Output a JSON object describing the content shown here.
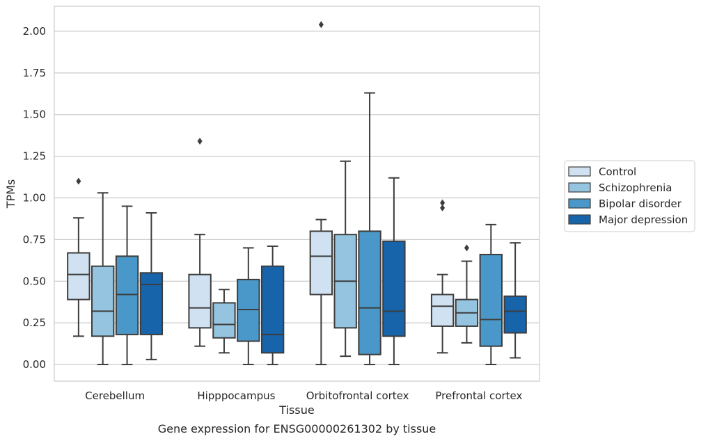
{
  "caption": "Gene expression for ENSG00000261302 by tissue",
  "chart_data": {
    "type": "box",
    "xlabel": "Tissue",
    "ylabel": "TPMs",
    "ylim": [
      -0.1,
      2.15
    ],
    "yticks": [
      "0.00",
      "0.25",
      "0.50",
      "0.75",
      "1.00",
      "1.25",
      "1.50",
      "1.75",
      "2.00"
    ],
    "grid": true,
    "legend_position": "right",
    "categories": [
      "Cerebellum",
      "Hipppocampus",
      "Orbitofrontal cortex",
      "Prefrontal cortex"
    ],
    "series": [
      {
        "name": "Control",
        "color": "#d0e1f2",
        "boxes": [
          {
            "whisker_low": 0.17,
            "q1": 0.39,
            "median": 0.54,
            "q3": 0.67,
            "whisker_high": 0.88,
            "outliers": [
              1.1
            ]
          },
          {
            "whisker_low": 0.11,
            "q1": 0.22,
            "median": 0.34,
            "q3": 0.54,
            "whisker_high": 0.78,
            "outliers": [
              1.34
            ]
          },
          {
            "whisker_low": 0.0,
            "q1": 0.42,
            "median": 0.65,
            "q3": 0.8,
            "whisker_high": 0.87,
            "outliers": [
              2.04
            ]
          },
          {
            "whisker_low": 0.07,
            "q1": 0.23,
            "median": 0.35,
            "q3": 0.42,
            "whisker_high": 0.54,
            "outliers": [
              0.94,
              0.97
            ]
          }
        ]
      },
      {
        "name": "Schizophrenia",
        "color": "#94c4df",
        "boxes": [
          {
            "whisker_low": 0.0,
            "q1": 0.17,
            "median": 0.32,
            "q3": 0.59,
            "whisker_high": 1.03,
            "outliers": []
          },
          {
            "whisker_low": 0.07,
            "q1": 0.16,
            "median": 0.24,
            "q3": 0.37,
            "whisker_high": 0.45,
            "outliers": []
          },
          {
            "whisker_low": 0.05,
            "q1": 0.22,
            "median": 0.5,
            "q3": 0.78,
            "whisker_high": 1.22,
            "outliers": []
          },
          {
            "whisker_low": 0.13,
            "q1": 0.23,
            "median": 0.31,
            "q3": 0.39,
            "whisker_high": 0.62,
            "outliers": [
              0.7
            ]
          }
        ]
      },
      {
        "name": "Bipolar disorder",
        "color": "#4a98c9",
        "boxes": [
          {
            "whisker_low": 0.0,
            "q1": 0.18,
            "median": 0.42,
            "q3": 0.65,
            "whisker_high": 0.95,
            "outliers": []
          },
          {
            "whisker_low": 0.0,
            "q1": 0.14,
            "median": 0.33,
            "q3": 0.51,
            "whisker_high": 0.7,
            "outliers": []
          },
          {
            "whisker_low": 0.0,
            "q1": 0.06,
            "median": 0.34,
            "q3": 0.8,
            "whisker_high": 1.63,
            "outliers": []
          },
          {
            "whisker_low": 0.0,
            "q1": 0.11,
            "median": 0.27,
            "q3": 0.66,
            "whisker_high": 0.84,
            "outliers": []
          }
        ]
      },
      {
        "name": "Major depression",
        "color": "#1764ab",
        "boxes": [
          {
            "whisker_low": 0.03,
            "q1": 0.18,
            "median": 0.48,
            "q3": 0.55,
            "whisker_high": 0.91,
            "outliers": []
          },
          {
            "whisker_low": 0.0,
            "q1": 0.07,
            "median": 0.18,
            "q3": 0.59,
            "whisker_high": 0.71,
            "outliers": []
          },
          {
            "whisker_low": 0.0,
            "q1": 0.17,
            "median": 0.32,
            "q3": 0.74,
            "whisker_high": 1.12,
            "outliers": []
          },
          {
            "whisker_low": 0.04,
            "q1": 0.19,
            "median": 0.32,
            "q3": 0.41,
            "whisker_high": 0.73,
            "outliers": []
          }
        ]
      }
    ]
  }
}
